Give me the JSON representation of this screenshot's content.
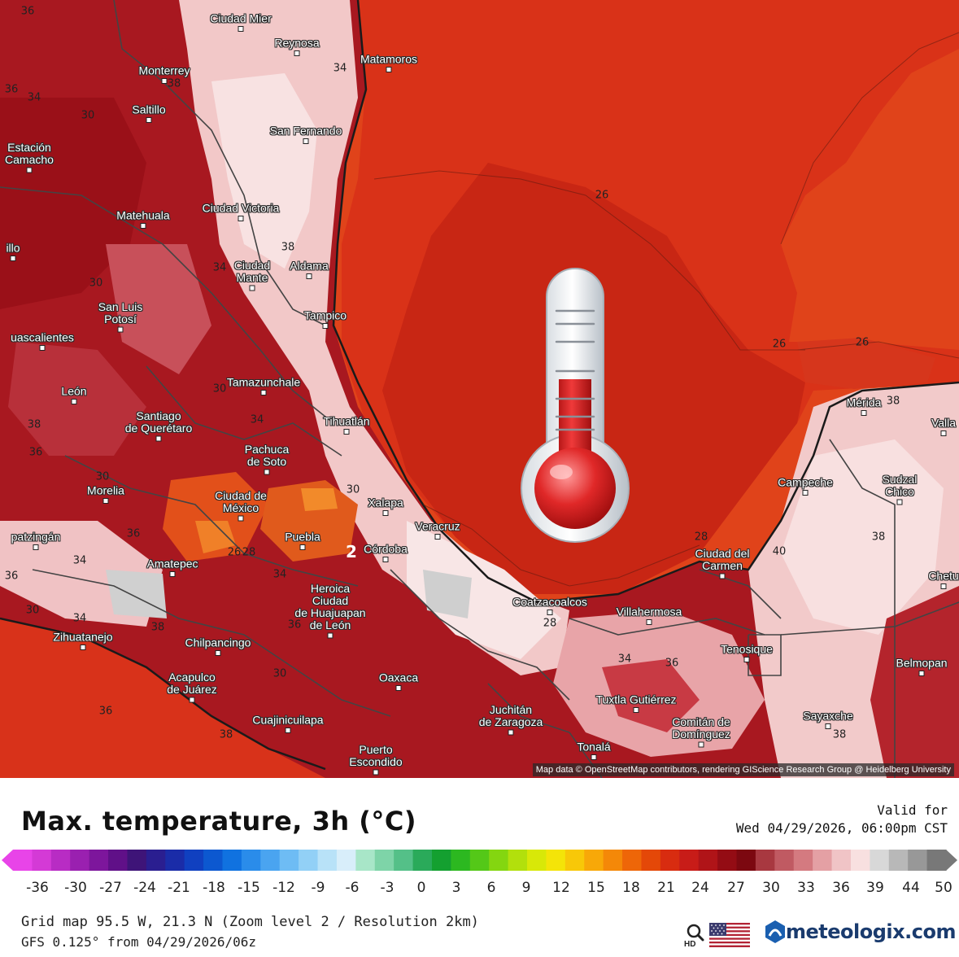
{
  "map": {
    "attribution": "Map data © OpenStreetMap contributors, rendering GIScience Research Group @ Heidelberg University",
    "cities": [
      {
        "id": "ciudad-mier",
        "label": "Ciudad Mier"
      },
      {
        "id": "reynosa",
        "label": "Reynosa"
      },
      {
        "id": "matamoros",
        "label": "Matamoros"
      },
      {
        "id": "monterrey",
        "label": "Monterrey"
      },
      {
        "id": "saltillo",
        "label": "Saltillo"
      },
      {
        "id": "san-fernando",
        "label": "San Fernando"
      },
      {
        "id": "estacion-camacho",
        "label": "Estación\nCamacho"
      },
      {
        "id": "ciudad-victoria",
        "label": "Ciudad Victoria"
      },
      {
        "id": "matehuala",
        "label": "Matehuala"
      },
      {
        "id": "illo",
        "label": "illo"
      },
      {
        "id": "ciudad-mante",
        "label": "Ciudad\nMante"
      },
      {
        "id": "aldama",
        "label": "Aldama"
      },
      {
        "id": "san-luis-potosi",
        "label": "San Luis\nPotosí"
      },
      {
        "id": "tampico",
        "label": "Tampico"
      },
      {
        "id": "aguascalientes",
        "label": "uascalientes"
      },
      {
        "id": "tamazunchale",
        "label": "Tamazunchale"
      },
      {
        "id": "leon",
        "label": "León"
      },
      {
        "id": "queretaro",
        "label": "Santiago\nde Querétaro"
      },
      {
        "id": "tihuatlan",
        "label": "Tihuatlán"
      },
      {
        "id": "pachuca",
        "label": "Pachuca\nde Soto"
      },
      {
        "id": "morelia",
        "label": "Morelia"
      },
      {
        "id": "cdmx",
        "label": "Ciudad de\nMéxico"
      },
      {
        "id": "xalapa",
        "label": "Xalapa"
      },
      {
        "id": "veracruz",
        "label": "Veracruz"
      },
      {
        "id": "puebla",
        "label": "Puebla"
      },
      {
        "id": "cordoba",
        "label": "Córdoba"
      },
      {
        "id": "apatzingan",
        "label": "patzingán"
      },
      {
        "id": "amatepec",
        "label": "Amatepec"
      },
      {
        "id": "huajuapan",
        "label": "Heroica\nCiudad\nde Huajuapan\nde León"
      },
      {
        "id": "zihuatanejo",
        "label": "Zihuatanejo"
      },
      {
        "id": "chilpancingo",
        "label": "Chilpancingo"
      },
      {
        "id": "acapulco",
        "label": "Acapulco\nde Juárez"
      },
      {
        "id": "oaxaca",
        "label": "Oaxaca"
      },
      {
        "id": "cuajinicuilapa",
        "label": "Cuajinicuilapa"
      },
      {
        "id": "puerto-escondido",
        "label": "Puerto\nEscondido"
      },
      {
        "id": "juchitan",
        "label": "Juchitán\nde Zaragoza"
      },
      {
        "id": "tonala",
        "label": "Tonalá"
      },
      {
        "id": "tuxtla",
        "label": "Tuxtla Gutiérrez"
      },
      {
        "id": "comitan",
        "label": "Comitán de\nDomínguez"
      },
      {
        "id": "coatzacoalcos",
        "label": "Coatzacoalcos"
      },
      {
        "id": "villahermosa",
        "label": "Villahermosa"
      },
      {
        "id": "tenosique",
        "label": "Tenosique"
      },
      {
        "id": "ciudad-del-carmen",
        "label": "Ciudad del\nCarmen"
      },
      {
        "id": "campeche",
        "label": "Campeche"
      },
      {
        "id": "merida",
        "label": "Mérida"
      },
      {
        "id": "valladolid",
        "label": "Valla"
      },
      {
        "id": "sudzal-chico",
        "label": "Sudzal\nChico"
      },
      {
        "id": "chetumal",
        "label": "Chetu"
      },
      {
        "id": "belmopan",
        "label": "Belmopan"
      },
      {
        "id": "sayaxche",
        "label": "Sayaxche"
      }
    ],
    "isolines": [
      {
        "id": "i1",
        "label": "36"
      },
      {
        "id": "i2",
        "label": "36"
      },
      {
        "id": "i3",
        "label": "34"
      },
      {
        "id": "i4",
        "label": "30"
      },
      {
        "id": "i5",
        "label": "38"
      },
      {
        "id": "i6",
        "label": "34"
      },
      {
        "id": "i7",
        "label": "26"
      },
      {
        "id": "i8",
        "label": "38"
      },
      {
        "id": "i9",
        "label": "34"
      },
      {
        "id": "i10",
        "label": "30"
      },
      {
        "id": "i11",
        "label": "26"
      },
      {
        "id": "i12",
        "label": "26"
      },
      {
        "id": "i13",
        "label": "38"
      },
      {
        "id": "i14",
        "label": "34"
      },
      {
        "id": "i15",
        "label": "30"
      },
      {
        "id": "i16",
        "label": "36"
      },
      {
        "id": "i17",
        "label": "34"
      },
      {
        "id": "i18",
        "label": "36"
      },
      {
        "id": "i19",
        "label": "26"
      },
      {
        "id": "i20",
        "label": "28"
      },
      {
        "id": "i21",
        "label": "34"
      },
      {
        "id": "i22",
        "label": "34"
      },
      {
        "id": "i23",
        "label": "36"
      },
      {
        "id": "i24",
        "label": "38"
      },
      {
        "id": "i25",
        "label": "30"
      },
      {
        "id": "i26",
        "label": "38"
      },
      {
        "id": "i27",
        "label": "34"
      },
      {
        "id": "i28",
        "label": "36"
      },
      {
        "id": "i29",
        "label": "28"
      },
      {
        "id": "i30",
        "label": "40"
      },
      {
        "id": "i31",
        "label": "38"
      },
      {
        "id": "i32",
        "label": "38"
      },
      {
        "id": "i33",
        "label": "36"
      },
      {
        "id": "i34",
        "label": "30"
      },
      {
        "id": "i35",
        "label": "36"
      },
      {
        "id": "i36",
        "label": "38"
      },
      {
        "id": "i37",
        "label": "30"
      },
      {
        "id": "i38",
        "label": "30"
      },
      {
        "id": "i39",
        "label": "28"
      },
      {
        "id": "i40",
        "label": "2"
      }
    ],
    "overlay_icon": "thermometer-icon"
  },
  "legend": {
    "title": "Max. temperature, 3h (°C)",
    "valid_label": "Valid for",
    "valid_time": "Wed 04/29/2026, 06:00pm CST",
    "scale_ticks": [
      "-36",
      "-30",
      "-27",
      "-24",
      "-21",
      "-18",
      "-15",
      "-12",
      "-9",
      "-6",
      "-3",
      "0",
      "3",
      "6",
      "9",
      "12",
      "15",
      "18",
      "21",
      "24",
      "27",
      "30",
      "33",
      "36",
      "39",
      "44",
      "50"
    ],
    "scale_colors": [
      "#e844e8",
      "#d43ad6",
      "#b82cc4",
      "#9a20b0",
      "#7d169c",
      "#601088",
      "#3e1478",
      "#2a1e90",
      "#1a2ca8",
      "#1040c0",
      "#0c58d0",
      "#1072e0",
      "#2a8cea",
      "#4aa4f0",
      "#6ebcf4",
      "#92d0f6",
      "#b8e2f8",
      "#d8eefa",
      "#a8e6c8",
      "#7ed4a8",
      "#54c088",
      "#2aaa5a",
      "#14a030",
      "#2cb820",
      "#54c818",
      "#84d610",
      "#b2e00c",
      "#d8e808",
      "#f4e408",
      "#f8c808",
      "#f8a808",
      "#f48808",
      "#ee6608",
      "#e44808",
      "#d82c10",
      "#c81c18",
      "#b01418",
      "#940c14",
      "#7c0810",
      "#a83840",
      "#c05a62",
      "#d47a80",
      "#e4a0a4",
      "#f0c4c6",
      "#f8e0e0",
      "#d8d8d8",
      "#b8b8b8",
      "#989898",
      "#787878"
    ],
    "grid_info": "Grid map 95.5 W, 21.3 N (Zoom level 2 / Resolution 2km)",
    "model_info": "GFS 0.125° from 04/29/2026/06z",
    "brand": "meteologix.com",
    "hd_label": "HD"
  }
}
